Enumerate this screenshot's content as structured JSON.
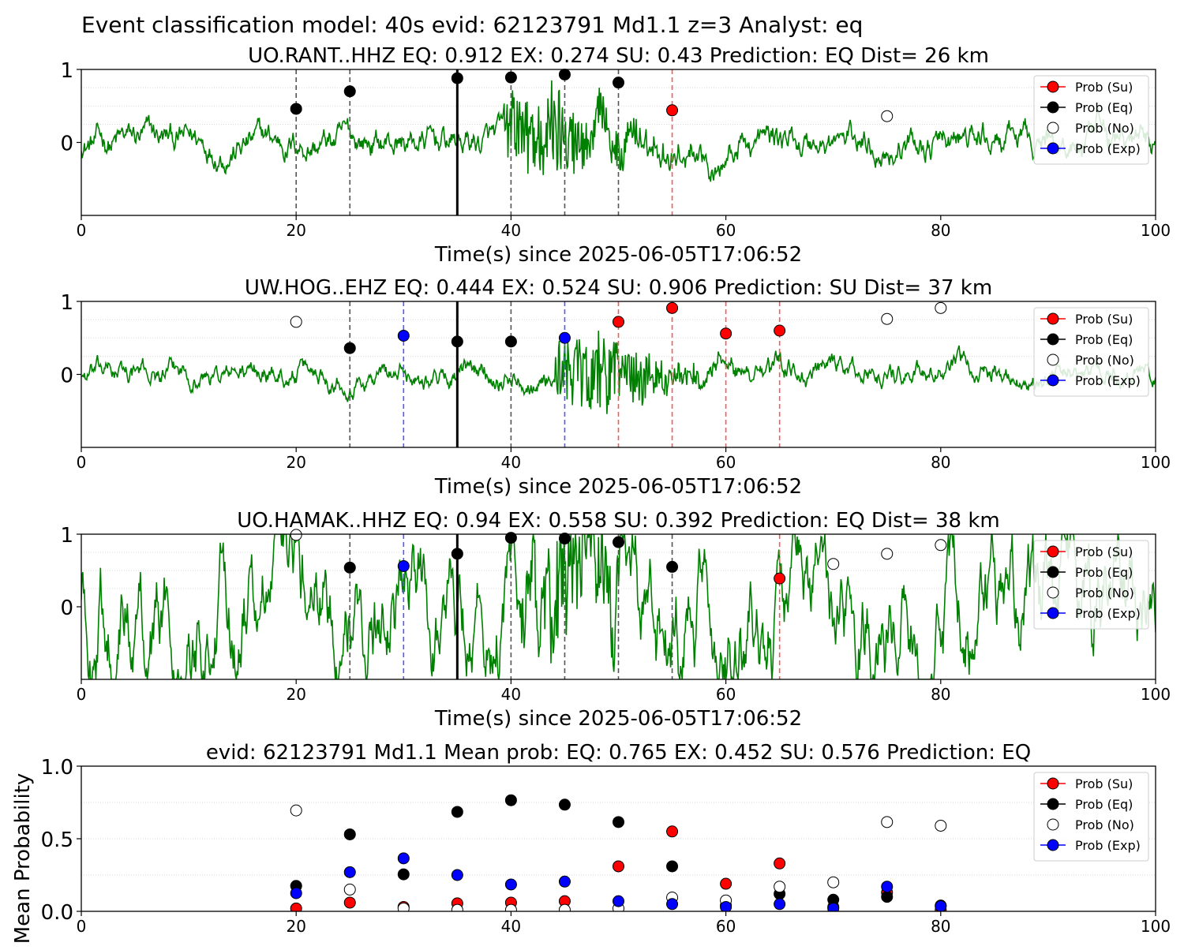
{
  "figure": {
    "suptitle": "Event classification model: 40s evid: 62123791 Md1.1 z=3 Analyst: eq"
  },
  "colors": {
    "trace": "#008000",
    "Su": "#ff0000",
    "Eq": "#000000",
    "No": "#ffffff",
    "Exp": "#0000ff",
    "dash_eq": "#555555",
    "dash_su": "#ff5555",
    "dash_exp": "#5555ff"
  },
  "chart_data": [
    {
      "type": "scatter",
      "title": "UO.RANT..HHZ   EQ: 0.912  EX: 0.274  SU: 0.43   Prediction: EQ    Dist= 26 km",
      "xlabel": "Time(s) since 2025-06-05T17:06:52",
      "ylabel": "",
      "xlim": [
        0,
        100
      ],
      "ylim": [
        -1,
        1
      ],
      "xticks": [
        "0",
        "20",
        "40",
        "60",
        "80",
        "100"
      ],
      "yticks": [
        "0",
        "1"
      ],
      "pick_time": 35,
      "noise_amp": 0.18,
      "signal": {
        "start": 39.3,
        "peak": 44,
        "end": 60,
        "amp": 0.7
      },
      "vlines": [
        {
          "x": 20,
          "class": "Eq"
        },
        {
          "x": 25,
          "class": "Eq"
        },
        {
          "x": 40,
          "class": "Eq"
        },
        {
          "x": 45,
          "class": "Eq"
        },
        {
          "x": 50,
          "class": "Eq"
        },
        {
          "x": 55,
          "class": "Su"
        }
      ],
      "points": [
        {
          "x": 20,
          "y": 0.46,
          "class": "Eq"
        },
        {
          "x": 25,
          "y": 0.7,
          "class": "Eq"
        },
        {
          "x": 35,
          "y": 0.88,
          "class": "Eq"
        },
        {
          "x": 40,
          "y": 0.89,
          "class": "Eq"
        },
        {
          "x": 45,
          "y": 0.93,
          "class": "Eq"
        },
        {
          "x": 50,
          "y": 0.82,
          "class": "Eq"
        },
        {
          "x": 55,
          "y": 0.44,
          "class": "Su"
        },
        {
          "x": 75,
          "y": 0.36,
          "class": "No"
        }
      ],
      "legend": {
        "position": "upper right",
        "entries": [
          "Prob (Su)",
          "Prob (Eq)",
          "Prob (No)",
          "Prob (Exp)"
        ]
      }
    },
    {
      "type": "scatter",
      "title": "UW.HOG..EHZ   EQ: 0.444  EX: 0.524  SU: 0.906   Prediction: SU    Dist= 37 km",
      "xlabel": "Time(s) since 2025-06-05T17:06:52",
      "ylabel": "",
      "xlim": [
        0,
        100
      ],
      "ylim": [
        -1,
        1
      ],
      "xticks": [
        "0",
        "20",
        "40",
        "60",
        "80",
        "100"
      ],
      "yticks": [
        "0",
        "1"
      ],
      "pick_time": 35,
      "noise_amp": 0.13,
      "signal": {
        "start": 44,
        "peak": 48,
        "end": 66,
        "amp": 0.6
      },
      "vlines": [
        {
          "x": 25,
          "class": "Eq"
        },
        {
          "x": 30,
          "class": "Exp"
        },
        {
          "x": 40,
          "class": "Eq"
        },
        {
          "x": 45,
          "class": "Exp"
        },
        {
          "x": 50,
          "class": "Su"
        },
        {
          "x": 55,
          "class": "Su"
        },
        {
          "x": 60,
          "class": "Su"
        },
        {
          "x": 65,
          "class": "Su"
        }
      ],
      "points": [
        {
          "x": 20,
          "y": 0.72,
          "class": "No"
        },
        {
          "x": 25,
          "y": 0.36,
          "class": "Eq"
        },
        {
          "x": 30,
          "y": 0.53,
          "class": "Exp"
        },
        {
          "x": 35,
          "y": 0.45,
          "class": "Eq"
        },
        {
          "x": 40,
          "y": 0.45,
          "class": "Eq"
        },
        {
          "x": 45,
          "y": 0.5,
          "class": "Exp"
        },
        {
          "x": 50,
          "y": 0.72,
          "class": "Su"
        },
        {
          "x": 55,
          "y": 0.91,
          "class": "Su"
        },
        {
          "x": 60,
          "y": 0.56,
          "class": "Su"
        },
        {
          "x": 65,
          "y": 0.6,
          "class": "Su"
        },
        {
          "x": 75,
          "y": 0.76,
          "class": "No"
        },
        {
          "x": 80,
          "y": 0.91,
          "class": "No"
        }
      ],
      "legend": {
        "position": "upper right",
        "entries": [
          "Prob (Su)",
          "Prob (Eq)",
          "Prob (No)",
          "Prob (Exp)"
        ]
      }
    },
    {
      "type": "scatter",
      "title": "UO.HAMAK..HHZ   EQ: 0.94  EX: 0.558  SU: 0.392   Prediction: EQ    Dist= 38 km",
      "xlabel": "Time(s) since 2025-06-05T17:06:52",
      "ylabel": "",
      "xlim": [
        0,
        100
      ],
      "ylim": [
        -1,
        1
      ],
      "xticks": [
        "0",
        "20",
        "40",
        "60",
        "80",
        "100"
      ],
      "yticks": [
        "0",
        "1"
      ],
      "pick_time": 35,
      "noise_amp": 0.45,
      "signal": {
        "start": 41,
        "peak": 47,
        "end": 57,
        "amp": 0.75
      },
      "vlines": [
        {
          "x": 25,
          "class": "Eq"
        },
        {
          "x": 30,
          "class": "Exp"
        },
        {
          "x": 40,
          "class": "Eq"
        },
        {
          "x": 45,
          "class": "Eq"
        },
        {
          "x": 50,
          "class": "Eq"
        },
        {
          "x": 55,
          "class": "Eq"
        },
        {
          "x": 65,
          "class": "Su"
        }
      ],
      "points": [
        {
          "x": 20,
          "y": 0.99,
          "class": "No"
        },
        {
          "x": 25,
          "y": 0.54,
          "class": "Eq"
        },
        {
          "x": 30,
          "y": 0.56,
          "class": "Exp"
        },
        {
          "x": 35,
          "y": 0.73,
          "class": "Eq"
        },
        {
          "x": 40,
          "y": 0.95,
          "class": "Eq"
        },
        {
          "x": 45,
          "y": 0.94,
          "class": "Eq"
        },
        {
          "x": 50,
          "y": 0.89,
          "class": "Eq"
        },
        {
          "x": 55,
          "y": 0.55,
          "class": "Eq"
        },
        {
          "x": 65,
          "y": 0.39,
          "class": "Su"
        },
        {
          "x": 70,
          "y": 0.59,
          "class": "No"
        },
        {
          "x": 75,
          "y": 0.73,
          "class": "No"
        },
        {
          "x": 80,
          "y": 0.85,
          "class": "No"
        }
      ],
      "legend": {
        "position": "upper right",
        "entries": [
          "Prob (Su)",
          "Prob (Eq)",
          "Prob (No)",
          "Prob (Exp)"
        ]
      }
    },
    {
      "type": "scatter",
      "title": "evid: 62123791  Md1.1   Mean prob:   EQ: 0.765  EX: 0.452  SU: 0.576   Prediction: EQ",
      "xlabel": "",
      "ylabel": "Mean Probability",
      "xlim": [
        0,
        100
      ],
      "ylim": [
        0,
        1
      ],
      "xticks": [
        "0",
        "20",
        "40",
        "60",
        "80",
        "100"
      ],
      "yticks": [
        "0.0",
        "0.5",
        "1.0"
      ],
      "grid": "y dotted",
      "series": [
        {
          "name": "Prob (Su)",
          "class": "Su",
          "x": [
            20,
            25,
            30,
            35,
            40,
            45,
            50,
            55,
            60,
            65,
            70,
            75,
            80
          ],
          "y": [
            0.02,
            0.06,
            0.03,
            0.055,
            0.06,
            0.07,
            0.31,
            0.55,
            0.19,
            0.33,
            0.03,
            0.13,
            0.01
          ]
        },
        {
          "name": "Prob (Eq)",
          "class": "Eq",
          "x": [
            20,
            25,
            30,
            35,
            40,
            45,
            50,
            55,
            60,
            65,
            70,
            75,
            80
          ],
          "y": [
            0.175,
            0.53,
            0.255,
            0.685,
            0.765,
            0.735,
            0.615,
            0.31,
            0.04,
            0.12,
            0.08,
            0.1,
            0.04
          ]
        },
        {
          "name": "Prob (No)",
          "class": "No",
          "x": [
            20,
            25,
            30,
            35,
            40,
            45,
            50,
            55,
            60,
            65,
            70,
            75,
            80
          ],
          "y": [
            0.695,
            0.15,
            0.02,
            0.01,
            0.01,
            0.01,
            0.02,
            0.095,
            0.075,
            0.17,
            0.2,
            0.615,
            0.59
          ]
        },
        {
          "name": "Prob (Exp)",
          "class": "Exp",
          "x": [
            20,
            25,
            30,
            35,
            40,
            45,
            50,
            55,
            60,
            65,
            70,
            75,
            80
          ],
          "y": [
            0.125,
            0.27,
            0.365,
            0.25,
            0.185,
            0.205,
            0.07,
            0.05,
            0.03,
            0.05,
            0.02,
            0.17,
            0.035
          ]
        }
      ],
      "legend": {
        "position": "upper right",
        "entries": [
          "Prob (Su)",
          "Prob (Eq)",
          "Prob (No)",
          "Prob (Exp)"
        ]
      }
    }
  ]
}
